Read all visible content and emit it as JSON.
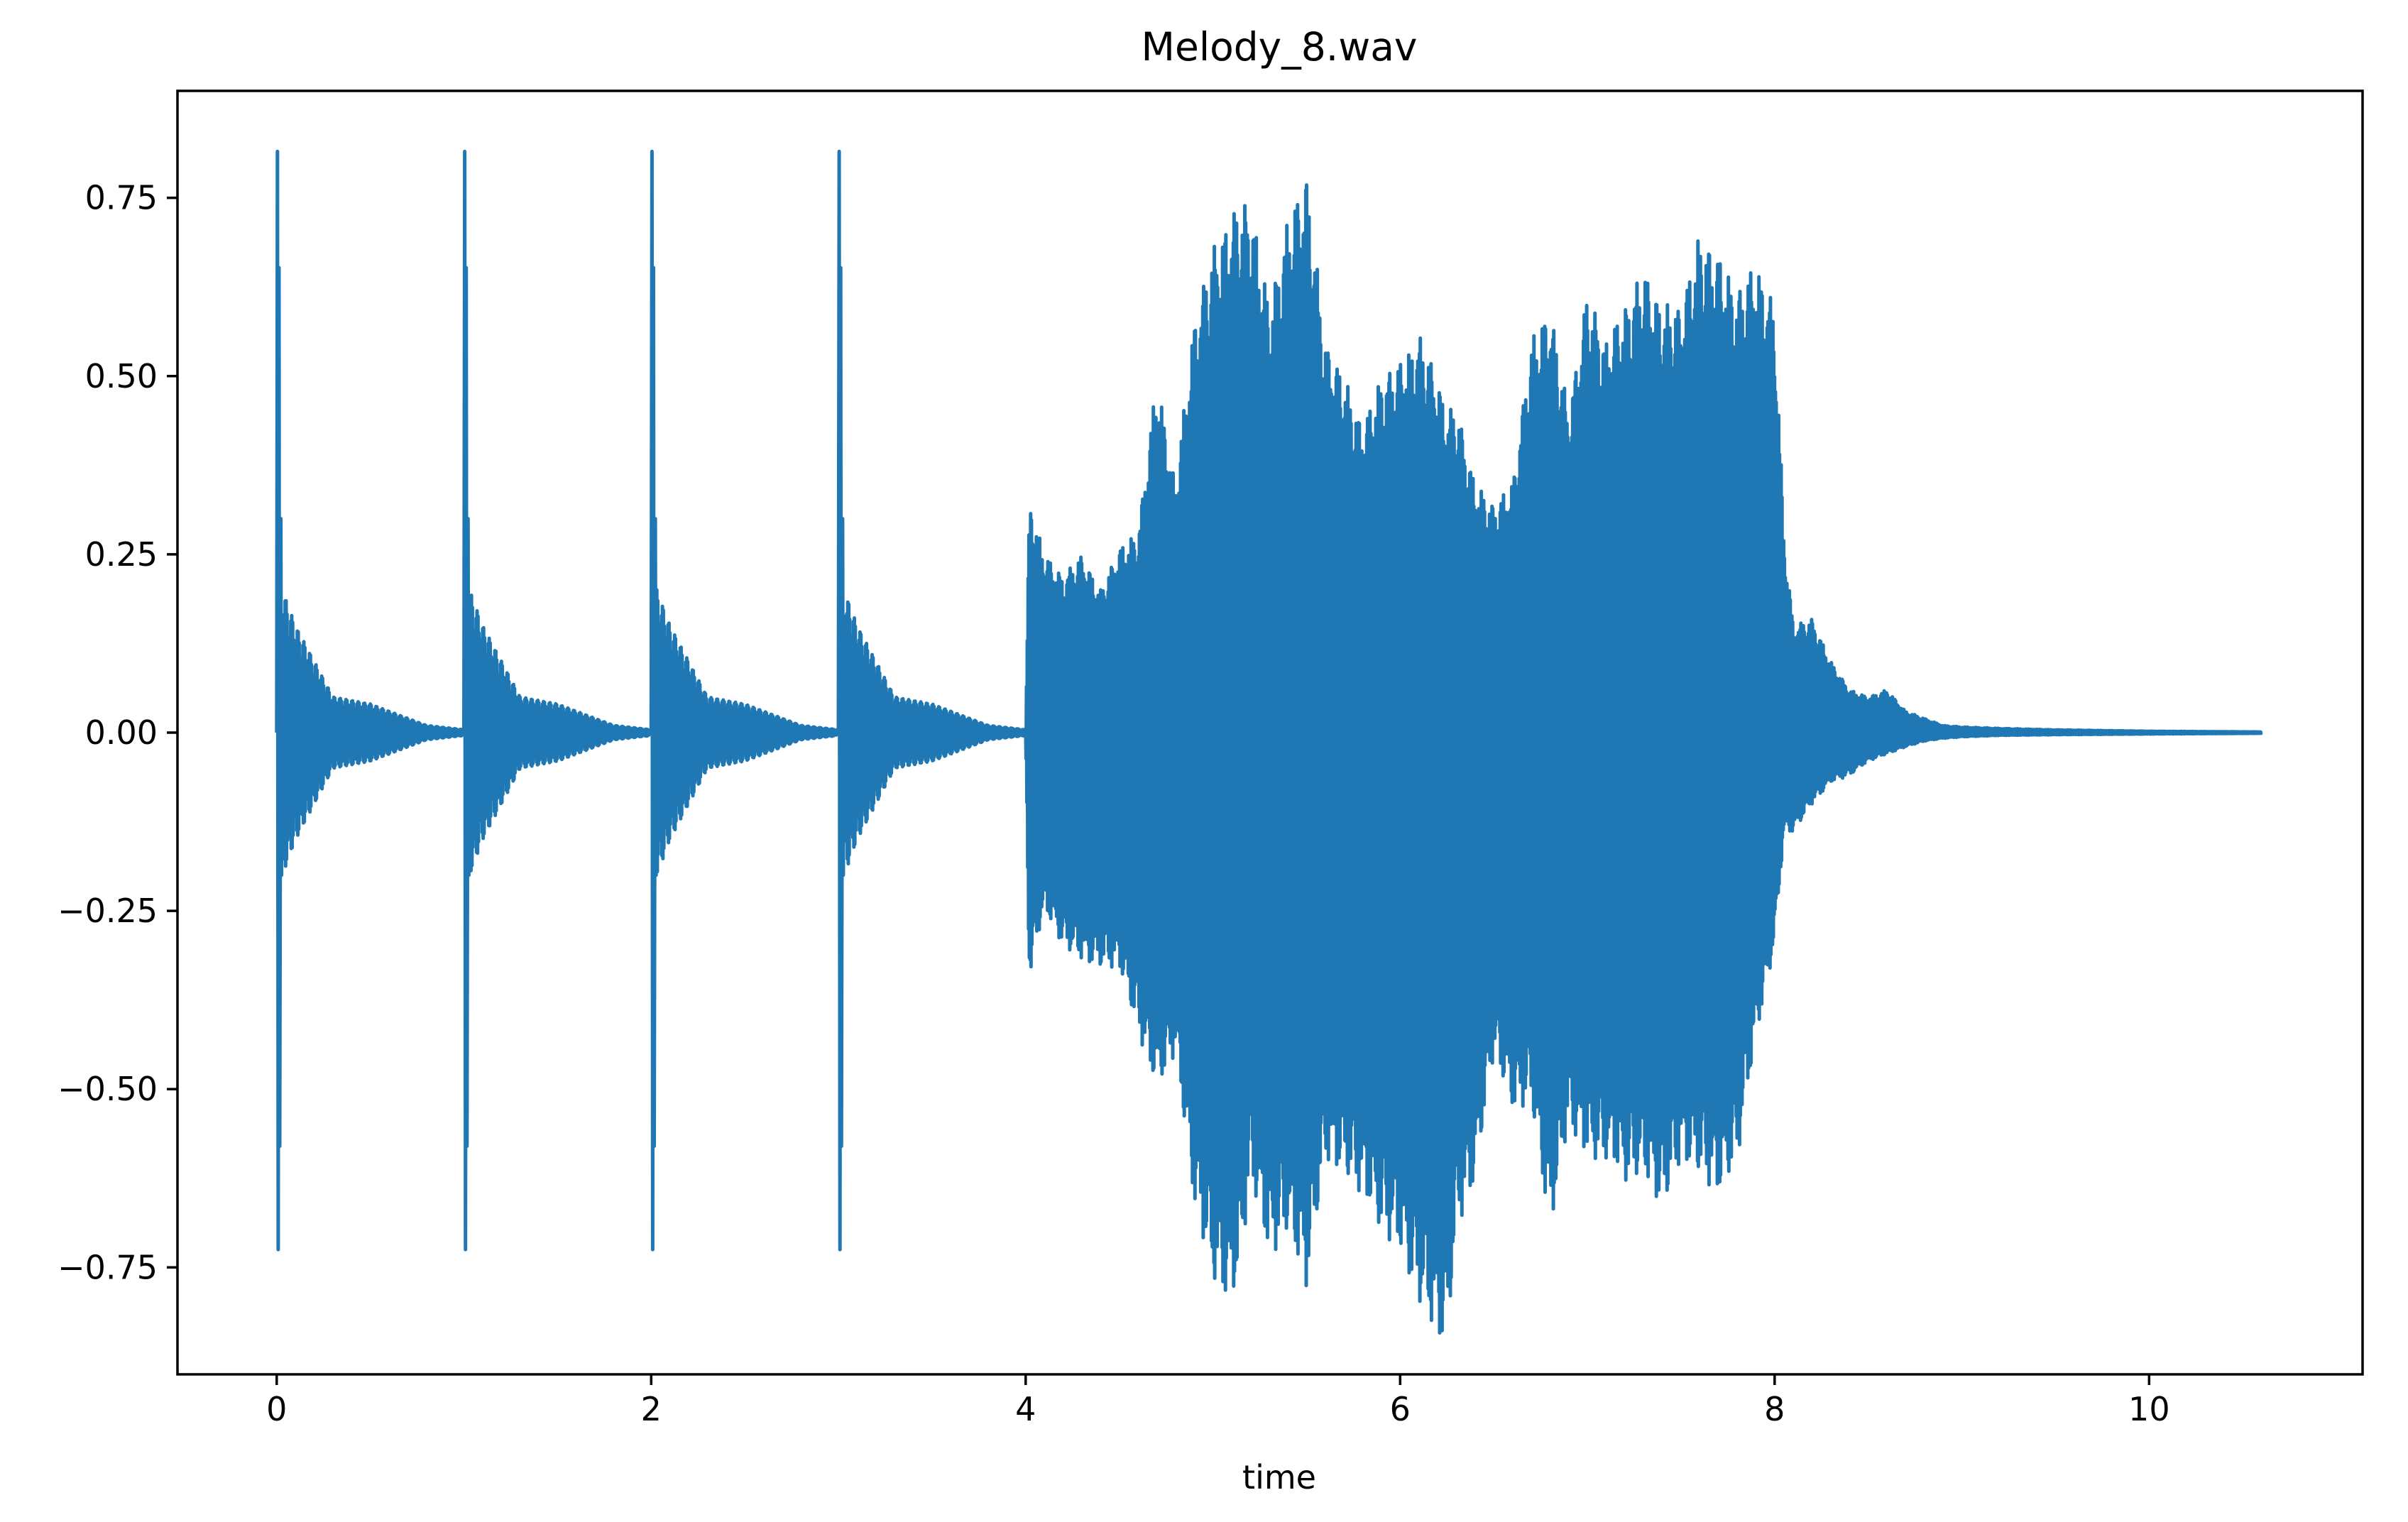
{
  "chart_data": {
    "type": "line",
    "title": "Melody_8.wav",
    "xlabel": "time",
    "ylabel": "",
    "xlim": [
      -0.53,
      11.14
    ],
    "ylim": [
      -0.9,
      0.9
    ],
    "xticks": [
      0,
      2,
      4,
      6,
      8,
      10
    ],
    "xtick_labels": [
      "0",
      "2",
      "4",
      "6",
      "8",
      "10"
    ],
    "yticks": [
      0.75,
      0.5,
      0.25,
      0.0,
      -0.25,
      -0.5,
      -0.75
    ],
    "ytick_labels": [
      "0.75",
      "0.50",
      "0.25",
      "0.00",
      "−0.25",
      "−0.50",
      "−0.75"
    ],
    "grid": false,
    "legend": false,
    "colors": {
      "series": "#1f77b4",
      "axes": "#000000",
      "background": "#ffffff"
    },
    "series": [
      {
        "values_description_none": null,
        "transients": [
          {
            "t": 0.0,
            "peak_max": 0.815,
            "peak_min": -0.725,
            "decay": [
              [
                0.1,
                0.15
              ],
              [
                0.2,
                0.1
              ],
              [
                0.3,
                0.05
              ],
              [
                0.5,
                0.04
              ],
              [
                0.8,
                0.01
              ],
              [
                1.0,
                0.004
              ]
            ]
          },
          {
            "t": 1.0,
            "peak_max": 0.815,
            "peak_min": -0.725,
            "decay": [
              [
                0.1,
                0.15
              ],
              [
                0.2,
                0.1
              ],
              [
                0.3,
                0.05
              ],
              [
                0.5,
                0.04
              ],
              [
                0.8,
                0.01
              ],
              [
                1.0,
                0.004
              ]
            ]
          },
          {
            "t": 2.0,
            "peak_max": 0.815,
            "peak_min": -0.725,
            "decay": [
              [
                0.1,
                0.15
              ],
              [
                0.2,
                0.1
              ],
              [
                0.3,
                0.05
              ],
              [
                0.5,
                0.04
              ],
              [
                0.8,
                0.01
              ],
              [
                1.0,
                0.004
              ]
            ]
          },
          {
            "t": 3.0,
            "peak_max": 0.815,
            "peak_min": -0.725,
            "decay": [
              [
                0.1,
                0.15
              ],
              [
                0.2,
                0.1
              ],
              [
                0.3,
                0.05
              ],
              [
                0.5,
                0.04
              ],
              [
                0.8,
                0.01
              ],
              [
                1.0,
                0.004
              ]
            ]
          }
        ],
        "envelope_t": [
          4.0,
          4.02,
          4.05,
          4.1,
          4.2,
          4.3,
          4.4,
          4.5,
          4.6,
          4.7,
          4.8,
          4.9,
          5.0,
          5.1,
          5.15,
          5.2,
          5.3,
          5.4,
          5.5,
          5.6,
          5.7,
          5.8,
          5.9,
          6.0,
          6.1,
          6.2,
          6.25,
          6.3,
          6.4,
          6.5,
          6.6,
          6.7,
          6.8,
          6.9,
          7.0,
          7.1,
          7.2,
          7.3,
          7.4,
          7.5,
          7.6,
          7.7,
          7.8,
          7.9,
          8.0,
          8.05,
          8.1,
          8.2,
          8.3,
          8.4,
          8.5,
          8.6,
          8.7,
          8.8,
          8.9,
          9.0,
          9.2,
          9.5,
          10.0,
          10.6
        ],
        "envelope_max": [
          0.0,
          0.33,
          0.3,
          0.25,
          0.22,
          0.25,
          0.2,
          0.26,
          0.28,
          0.5,
          0.35,
          0.58,
          0.68,
          0.73,
          0.74,
          0.75,
          0.6,
          0.72,
          0.785,
          0.55,
          0.5,
          0.43,
          0.5,
          0.52,
          0.56,
          0.5,
          0.45,
          0.46,
          0.35,
          0.32,
          0.35,
          0.55,
          0.6,
          0.45,
          0.62,
          0.55,
          0.6,
          0.65,
          0.6,
          0.6,
          0.7,
          0.67,
          0.62,
          0.66,
          0.6,
          0.28,
          0.15,
          0.16,
          0.1,
          0.06,
          0.05,
          0.06,
          0.03,
          0.02,
          0.01,
          0.008,
          0.006,
          0.004,
          0.002,
          0.001
        ],
        "envelope_min": [
          0.0,
          -0.36,
          -0.3,
          -0.25,
          -0.3,
          -0.32,
          -0.33,
          -0.33,
          -0.42,
          -0.5,
          -0.45,
          -0.66,
          -0.77,
          -0.8,
          -0.75,
          -0.62,
          -0.74,
          -0.7,
          -0.78,
          -0.6,
          -0.62,
          -0.65,
          -0.7,
          -0.73,
          -0.8,
          -0.85,
          -0.86,
          -0.7,
          -0.63,
          -0.45,
          -0.53,
          -0.52,
          -0.7,
          -0.55,
          -0.6,
          -0.6,
          -0.63,
          -0.62,
          -0.67,
          -0.6,
          -0.62,
          -0.65,
          -0.6,
          -0.43,
          -0.3,
          -0.14,
          -0.14,
          -0.1,
          -0.07,
          -0.06,
          -0.04,
          -0.03,
          -0.02,
          -0.012,
          -0.008,
          -0.006,
          -0.004,
          -0.003,
          -0.002,
          -0.001
        ]
      }
    ]
  }
}
